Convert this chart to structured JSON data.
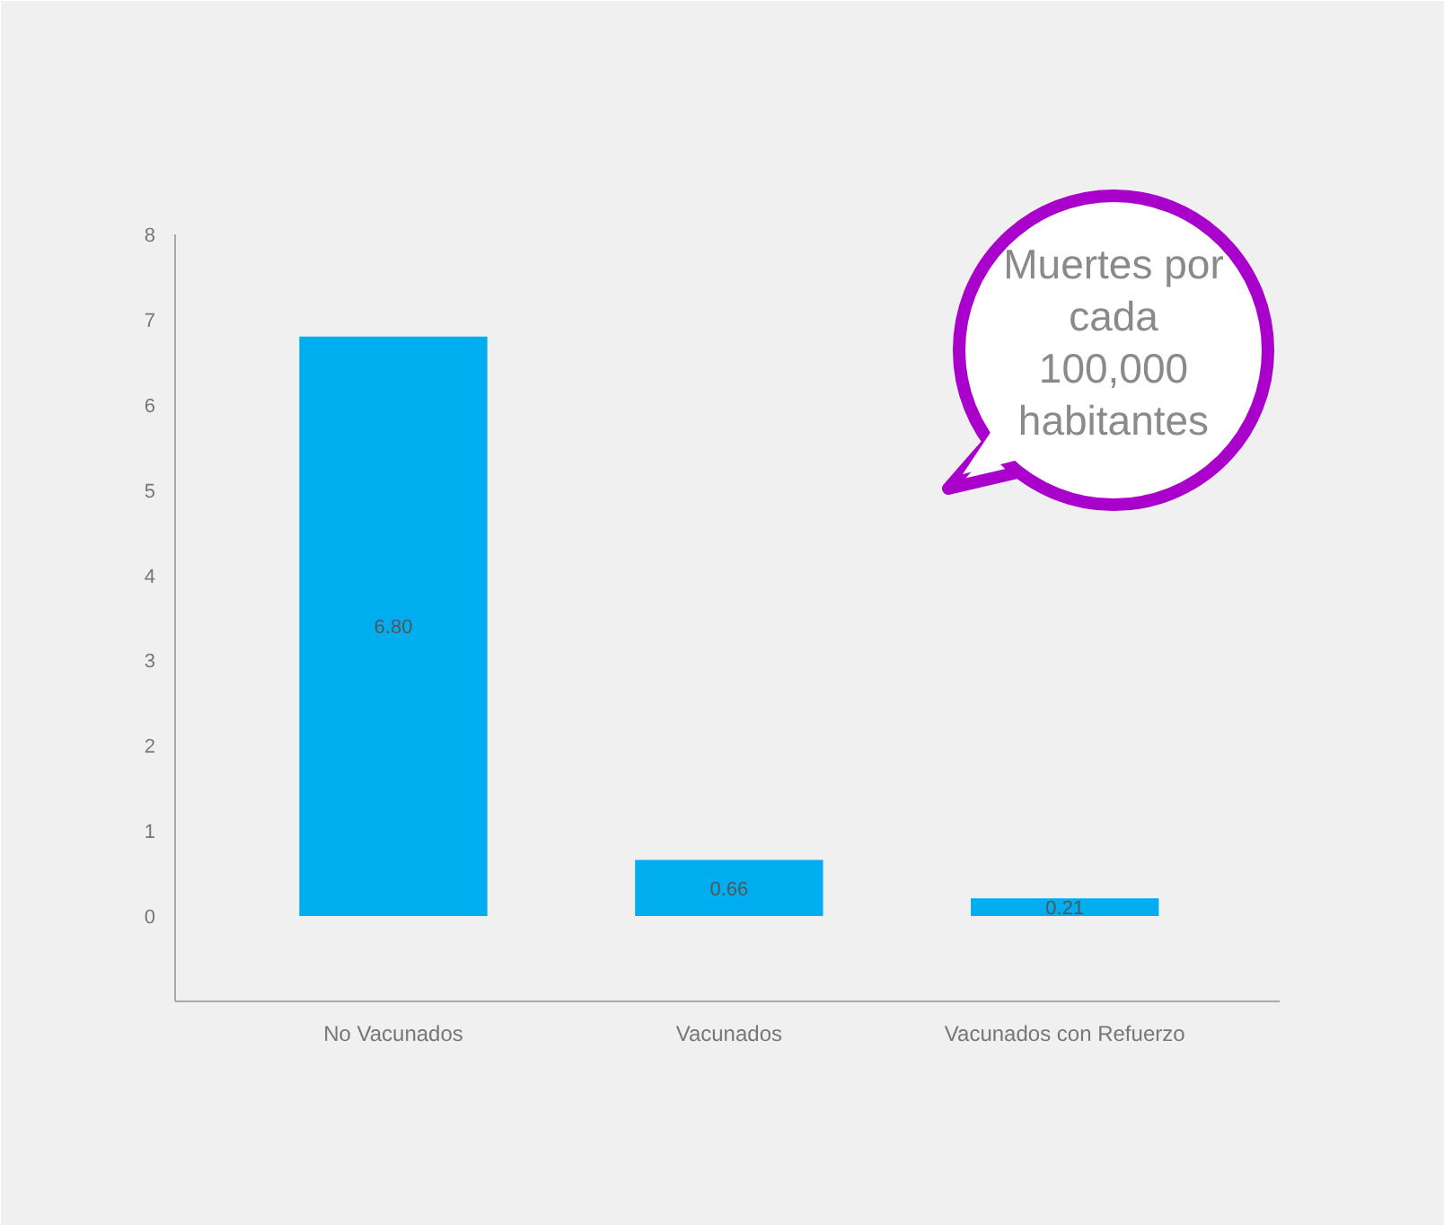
{
  "chart_data": {
    "type": "bar",
    "categories": [
      "No Vacunados",
      "Vacunados",
      "Vacunados con Refuerzo"
    ],
    "values": [
      6.8,
      0.66,
      0.21
    ],
    "value_labels": [
      "6.80",
      "0.66",
      "0.21"
    ],
    "color": "#00aeef",
    "ylim": [
      -1,
      8
    ],
    "yticks": [
      0,
      1,
      2,
      3,
      4,
      5,
      6,
      7,
      8
    ],
    "grid": false,
    "annotations": [
      "Muertes por cada 100,000 habitantes"
    ]
  }
}
